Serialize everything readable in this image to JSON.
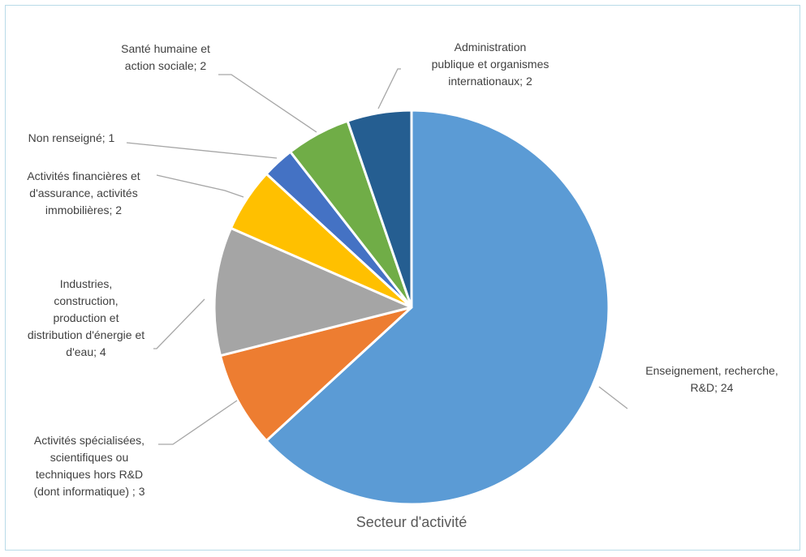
{
  "chart_data": {
    "type": "pie",
    "title": "Secteur d'activité",
    "show_legend": false,
    "colors": {
      "frame_border": "#b9dbe8",
      "leader_line": "#a6a6a6",
      "label_text": "#404040",
      "title_text": "#595959"
    },
    "slices": [
      {
        "name": "Enseignement, recherche, R&D",
        "value": 24,
        "color": "#5b9bd5",
        "label_lines": [
          "Enseignement, recherche,",
          "R&D; 24"
        ]
      },
      {
        "name": "Activités spécialisées, scientifiques ou techniques hors R&D (dont informatique)",
        "value": 3,
        "color": "#ed7d31",
        "label_lines": [
          "Activités spécialisées,",
          "scientifiques ou",
          "techniques hors R&D",
          "(dont informatique) ; 3"
        ]
      },
      {
        "name": "Industries, construction, production et distribution d'énergie et d'eau",
        "value": 4,
        "color": "#a5a5a5",
        "label_lines": [
          "Industries,",
          "construction,",
          "production et",
          "distribution d'énergie et",
          "d'eau; 4"
        ]
      },
      {
        "name": "Activités financières et d'assurance, activités immobilières",
        "value": 2,
        "color": "#ffc000",
        "label_lines": [
          "Activités financières et",
          "d'assurance, activités",
          "immobilières; 2"
        ]
      },
      {
        "name": "Non renseigné",
        "value": 1,
        "color": "#4472c4",
        "label_lines": [
          "Non renseigné; 1"
        ]
      },
      {
        "name": "Santé humaine et action sociale",
        "value": 2,
        "color": "#70ad47",
        "label_lines": [
          "Santé humaine et",
          "action sociale; 2"
        ]
      },
      {
        "name": "Administration publique et organismes internationaux",
        "value": 2,
        "color": "#255e91",
        "label_lines": [
          "Administration",
          "publique et organismes",
          "internationaux; 2"
        ]
      }
    ]
  }
}
